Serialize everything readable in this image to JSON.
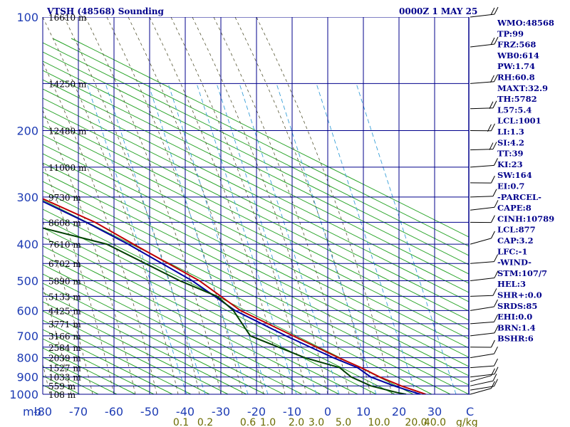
{
  "header": {
    "station_title": "VTSH (48568) Sounding",
    "valid_time": "0000Z  1 MAY 25"
  },
  "chart_data": {
    "type": "line",
    "subtype": "skew-t log-p",
    "x_unit_label": "",
    "y_unit_label": "mb",
    "x_unit_tick": "C",
    "mix_unit_label": "g/kg",
    "ylim_mb": [
      100,
      1000
    ],
    "xlim_C": [
      -80,
      40
    ],
    "pressure_ticks": [
      100,
      200,
      300,
      400,
      500,
      600,
      700,
      800,
      900,
      1000
    ],
    "pressure_tick_labels": [
      "100",
      "200",
      "300",
      "400",
      "500",
      "600",
      "700",
      "800",
      "900",
      "1000"
    ],
    "temperature_ticks": [
      -80,
      -70,
      -60,
      -50,
      -40,
      -30,
      -20,
      -10,
      0,
      10,
      20,
      30,
      40
    ],
    "temperature_tick_labels": [
      "-80",
      "-70",
      "-60",
      "-50",
      "-40",
      "-30",
      "-20",
      "-10",
      "0",
      "10",
      "20",
      "30",
      "40"
    ],
    "mixing_ratio_labels": [
      "0.1",
      "0.2",
      "0.6",
      "1.0",
      "2.0",
      "3.0",
      "5.0",
      "10.0",
      "20.0",
      "40.0"
    ],
    "mixing_ratio_values": [
      0.1,
      0.2,
      0.6,
      1.0,
      2.0,
      3.0,
      5.0,
      10.0,
      20.0,
      40.0
    ],
    "height_labels": [
      {
        "p": 100,
        "label": "16610 m"
      },
      {
        "p": 150,
        "label": "14250 m"
      },
      {
        "p": 200,
        "label": "12480 m"
      },
      {
        "p": 250,
        "label": "11000 m"
      },
      {
        "p": 300,
        "label": "9730 m"
      },
      {
        "p": 350,
        "label": "8608 m"
      },
      {
        "p": 400,
        "label": "7610 m"
      },
      {
        "p": 450,
        "label": "6702 m"
      },
      {
        "p": 500,
        "label": "5890 m"
      },
      {
        "p": 550,
        "label": "5133 m"
      },
      {
        "p": 600,
        "label": "4425 m"
      },
      {
        "p": 650,
        "label": "3771 m"
      },
      {
        "p": 700,
        "label": "3166 m"
      },
      {
        "p": 750,
        "label": "2584 m"
      },
      {
        "p": 800,
        "label": "2039 m"
      },
      {
        "p": 850,
        "label": "1527 m"
      },
      {
        "p": 900,
        "label": "1033 m"
      },
      {
        "p": 950,
        "label": "559 m"
      },
      {
        "p": 1000,
        "label": "108 m"
      }
    ],
    "series": [
      {
        "role": "temperature",
        "color": "#0000a0",
        "points": [
          {
            "p": 1000,
            "t": 26.0
          },
          {
            "p": 990,
            "t": 25.0
          },
          {
            "p": 950,
            "t": 21.0
          },
          {
            "p": 900,
            "t": 17.0
          },
          {
            "p": 850,
            "t": 16.0
          },
          {
            "p": 800,
            "t": 12.0
          },
          {
            "p": 700,
            "t": 5.0
          },
          {
            "p": 600,
            "t": -2.0
          },
          {
            "p": 500,
            "t": -5.5
          },
          {
            "p": 400,
            "t": -13.0
          },
          {
            "p": 350,
            "t": -18.5
          },
          {
            "p": 300,
            "t": -26.0
          },
          {
            "p": 250,
            "t": -35.0
          },
          {
            "p": 200,
            "t": -47.0
          },
          {
            "p": 150,
            "t": -63.0
          },
          {
            "p": 125,
            "t": -72.0
          },
          {
            "p": 110,
            "t": -76.0
          }
        ]
      },
      {
        "role": "dewpoint",
        "color": "#004000",
        "points": [
          {
            "p": 1000,
            "t": 22.0
          },
          {
            "p": 990,
            "t": 20.0
          },
          {
            "p": 950,
            "t": 14.5
          },
          {
            "p": 900,
            "t": 11.5
          },
          {
            "p": 850,
            "t": 11.0
          },
          {
            "p": 800,
            "t": 4.0
          },
          {
            "p": 700,
            "t": -5.0
          },
          {
            "p": 600,
            "t": -2.5
          },
          {
            "p": 550,
            "t": -3.0
          },
          {
            "p": 500,
            "t": -9.0
          },
          {
            "p": 400,
            "t": -19.0
          },
          {
            "p": 350,
            "t": -37.0
          },
          {
            "p": 300,
            "t": -39.0
          },
          {
            "p": 250,
            "t": -47.0
          },
          {
            "p": 200,
            "t": -60.0
          },
          {
            "p": 150,
            "t": -71.0
          },
          {
            "p": 120,
            "t": -78.0
          },
          {
            "p": 110,
            "t": -80.0
          }
        ]
      },
      {
        "role": "parcel",
        "color": "#c00000",
        "points": [
          {
            "p": 1000,
            "t": 27.5
          },
          {
            "p": 950,
            "t": 23.0
          },
          {
            "p": 900,
            "t": 19.5
          },
          {
            "p": 850,
            "t": 17.0
          },
          {
            "p": 800,
            "t": 13.5
          },
          {
            "p": 700,
            "t": 7.0
          },
          {
            "p": 600,
            "t": -0.5
          },
          {
            "p": 500,
            "t": -3.5
          },
          {
            "p": 400,
            "t": -11.5
          },
          {
            "p": 350,
            "t": -16.0
          },
          {
            "p": 300,
            "t": -24.5
          },
          {
            "p": 250,
            "t": -33.0
          },
          {
            "p": 200,
            "t": -45.0
          },
          {
            "p": 150,
            "t": -61.0
          },
          {
            "p": 125,
            "t": -70.0
          },
          {
            "p": 110,
            "t": -80.0
          }
        ]
      }
    ],
    "wind_barbs": [
      {
        "p": 100,
        "dir": 90,
        "spd": 20
      },
      {
        "p": 120,
        "dir": 90,
        "spd": 20
      },
      {
        "p": 150,
        "dir": 80,
        "spd": 15
      },
      {
        "p": 175,
        "dir": 70,
        "spd": 15
      },
      {
        "p": 200,
        "dir": 60,
        "spd": 15
      },
      {
        "p": 225,
        "dir": 70,
        "spd": 15
      },
      {
        "p": 250,
        "dir": 80,
        "spd": 10
      },
      {
        "p": 275,
        "dir": 60,
        "spd": 10
      },
      {
        "p": 300,
        "dir": 70,
        "spd": 10
      },
      {
        "p": 325,
        "dir": 90,
        "spd": 10
      },
      {
        "p": 350,
        "dir": 60,
        "spd": 10
      },
      {
        "p": 400,
        "dir": 120,
        "spd": 10
      },
      {
        "p": 450,
        "dir": 80,
        "spd": 5
      },
      {
        "p": 500,
        "dir": 90,
        "spd": 10
      },
      {
        "p": 550,
        "dir": 70,
        "spd": 10
      },
      {
        "p": 600,
        "dir": 100,
        "spd": 10
      },
      {
        "p": 650,
        "dir": 80,
        "spd": 10
      },
      {
        "p": 700,
        "dir": 90,
        "spd": 10
      },
      {
        "p": 750,
        "dir": 60,
        "spd": 10
      },
      {
        "p": 800,
        "dir": 100,
        "spd": 10
      },
      {
        "p": 850,
        "dir": 80,
        "spd": 10
      },
      {
        "p": 900,
        "dir": 90,
        "spd": 10
      },
      {
        "p": 925,
        "dir": 120,
        "spd": 10
      },
      {
        "p": 950,
        "dir": 110,
        "spd": 10
      },
      {
        "p": 975,
        "dir": 100,
        "spd": 5
      },
      {
        "p": 1000,
        "dir": 120,
        "spd": 5
      }
    ]
  },
  "indices": [
    "WMO:48568",
    "TP:99",
    "FRZ:568",
    "WB0:614",
    "PW:1.74",
    "RH:60.8",
    "MAXT:32.9",
    "TH:5782",
    "L57:5.4",
    "LCL:1001",
    "LI:1.3",
    "SI:4.2",
    "TT:39",
    "KI:23",
    "SW:164",
    "EI:0.7",
    "-PARCEL-",
    "CAPE:8",
    "CINH:10789",
    "LCL:877",
    "CAP:3.2",
    "LFC:-1",
    "-WIND-",
    "STM:107/7",
    "HEL:3",
    "SHR+:0.0",
    "SRDS:85",
    "EHI:0.0",
    "BRN:1.4",
    "BSHR:6"
  ],
  "colors": {
    "grid": "#00008b",
    "isotherm": "#00008b",
    "dry_adiabat": "#20a020",
    "moist_adiabat": "#555533",
    "mixing_ratio": "#3aa0d8",
    "axis_text": "#1e3cb4"
  }
}
